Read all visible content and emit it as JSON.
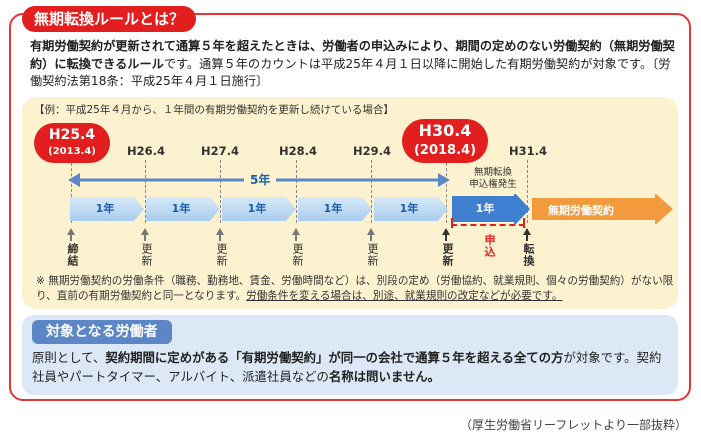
{
  "title": "無期転換ルールとは？",
  "intro": {
    "part1_bold": "有期労働契約が更新されて通算５年を超えたときは、労働者の申込みにより、期間の定めのない労働契約（無期労働契約）に転換できるルール",
    "part2": "です。通算５年のカウントは平成25年４月１日以降に開始した有期労働契約が対象です。〔労働契約法第18条：平成25年４月１日施行〕"
  },
  "timeline": {
    "example": "【例：平成25年４月から、１年間の有期労働契約を更新し続けている場合】",
    "start_badge": {
      "main": "H25.4",
      "sub": "(2013.4)"
    },
    "end_badge": {
      "main": "H30.4",
      "sub": "(2018.4)"
    },
    "ticks": [
      "H26.4",
      "H27.4",
      "H28.4",
      "H29.4",
      "H31.4"
    ],
    "span_label": "5年",
    "segments": [
      "1年",
      "1年",
      "1年",
      "1年",
      "1年",
      "1年"
    ],
    "right_note_line1": "無期転換",
    "right_note_line2": "申込権発生",
    "infinite_label": "無期労働契約",
    "under_labels": [
      "締結",
      "更新",
      "更新",
      "更新",
      "更新",
      "更新",
      "申込",
      "転換"
    ]
  },
  "note": {
    "part1": "※ 無期労働契約の労働条件（職務、勤務地、賃金、労働時間など）は、別段の定め（労働協約、就業規則、個々の労働契約）がない限り、直前の有期労働契約と同一となります。",
    "part2_underlined": "労働条件を変える場合は、別途、就業規則の改定などが必要です。"
  },
  "target": {
    "heading": "対象となる労働者",
    "text_part1": "原則として、",
    "text_bold1": "契約期間に定めがある「有期労働契約」が同一の会社で通算５年を超える全ての方",
    "text_part2": "が対象です。契約社員やパートタイマー、アルバイト、派遣社員などの",
    "text_bold2": "名称は問いません。"
  },
  "source": "（厚生労働省リーフレットより一部抜粋）",
  "colors": {
    "red": "#e31e1e",
    "blue": "#5c86c5",
    "orange": "#f39a3c",
    "cream": "#fdf2cf",
    "lightblue": "#dce8f5"
  }
}
